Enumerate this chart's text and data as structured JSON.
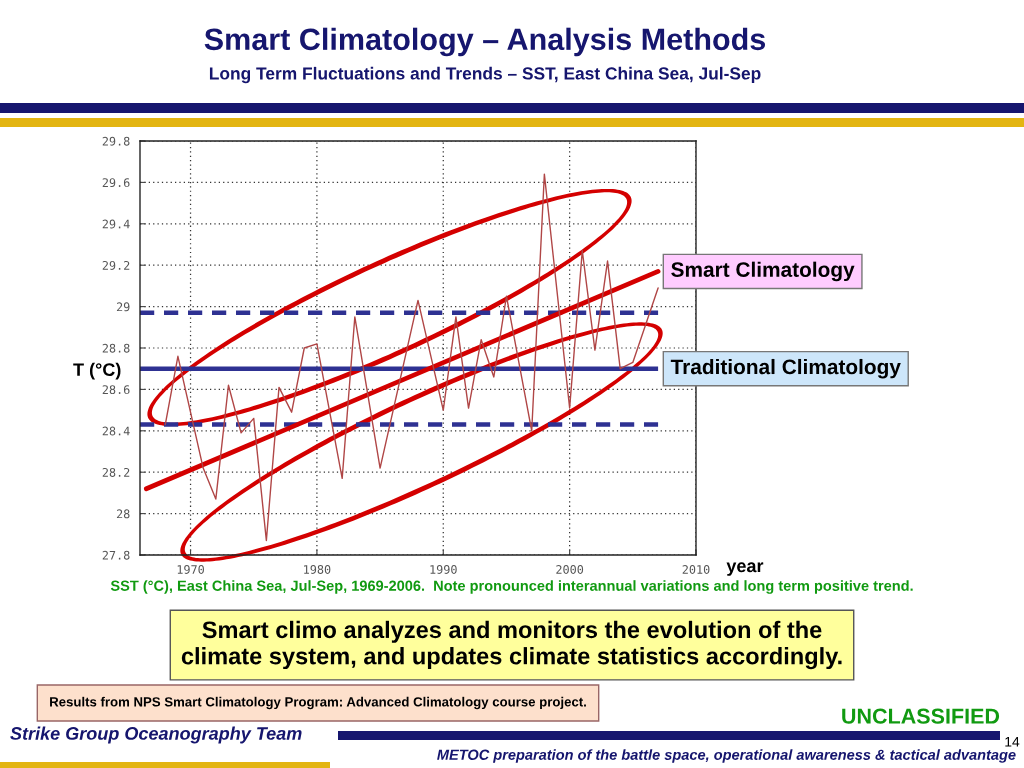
{
  "chart_data": {
    "type": "line",
    "title": "Smart Climatology – Analysis Methods",
    "subtitle": "Long Term Fluctuations and Trends – SST, East China Sea, Jul-Sep",
    "xlabel": "year",
    "ylabel": "T (°C)",
    "annotations": [
      "SST (°C), East China Sea, Jul-Sep, 1969-2006.  Note pronounced interannual variations and long term positive trend.",
      "Smart climo analyzes and monitors the evolution of the\nclimate system, and updates climate statistics accordingly.",
      "Results from NPS Smart Climatology Program: Advanced Climatology course project.",
      "Strike Group Oceanography Team",
      "UNCLASSIFIED",
      "14",
      "METOC preparation of the battle space, operational awareness & tactical advantage"
    ],
    "series": [
      {
        "color": "#b04646",
        "x": [
          1968,
          1969,
          1971,
          1972,
          1973,
          1974,
          1975,
          1976,
          1977,
          1978,
          1979,
          1980,
          1982,
          1983,
          1985,
          1988,
          1990,
          1991,
          1992,
          1993,
          1994,
          1995,
          1997,
          1998,
          2000,
          2001,
          2002,
          2003,
          2004,
          2005,
          2007
        ],
        "values": [
          28.43,
          28.76,
          28.22,
          28.07,
          28.62,
          28.39,
          28.46,
          27.87,
          28.61,
          28.49,
          28.8,
          28.82,
          28.17,
          28.95,
          28.22,
          29.03,
          28.5,
          28.95,
          28.51,
          28.84,
          28.66,
          29.05,
          28.4,
          29.64,
          28.51,
          29.27,
          28.79,
          29.22,
          28.7,
          28.73,
          29.09
        ]
      },
      {
        "type": "line",
        "name": "Smart Climatology",
        "color": "#d40000",
        "x": [
          1966.5,
          2007
        ],
        "values": [
          28.12,
          29.17
        ]
      }
    ],
    "ref_lines": [
      {
        "axis": "y",
        "value": 28.7,
        "label": "Traditional Climatology",
        "color": "#2e3192",
        "line_style": "solid"
      },
      {
        "axis": "y",
        "value": 28.97,
        "color": "#2e3192",
        "line_style": "dashed"
      },
      {
        "axis": "y",
        "value": 28.43,
        "color": "#2e3192",
        "line_style": "dashed"
      }
    ],
    "xlim": [
      1966,
      2010
    ],
    "xticks": [
      1970,
      1980,
      1990,
      2000,
      2010
    ],
    "ylim": [
      27.8,
      29.8
    ],
    "yticks": [
      27.8,
      28,
      28.2,
      28.4,
      28.6,
      28.8,
      29,
      29.2,
      29.4,
      29.6,
      29.8
    ],
    "grid": true,
    "line_style": "solid"
  }
}
